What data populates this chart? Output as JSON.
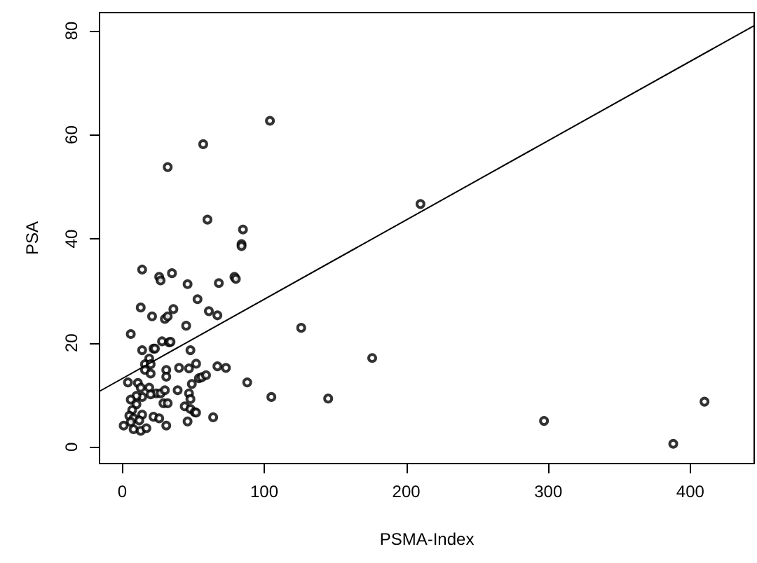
{
  "chart_data": {
    "type": "scatter",
    "xlabel": "PSMA-Index",
    "ylabel": "PSA",
    "xlim": [
      -16,
      445
    ],
    "ylim": [
      -3.2,
      83.5
    ],
    "xticks": [
      0,
      100,
      200,
      300,
      400
    ],
    "yticks": [
      0,
      20,
      40,
      60,
      80
    ],
    "grid": false,
    "marker": "circle",
    "series": [
      {
        "color": "#000000",
        "x": [
          104,
          57,
          32,
          60,
          85,
          84,
          84,
          210,
          14,
          26,
          27,
          35,
          46,
          68,
          79,
          80,
          53,
          13,
          36,
          21,
          30,
          32,
          61,
          67,
          45,
          126,
          6,
          14,
          22,
          23,
          28,
          33,
          34,
          48,
          176,
          19,
          16,
          20,
          16,
          20,
          31,
          40,
          47,
          52,
          67,
          73,
          31,
          54,
          56,
          59,
          4,
          11,
          13,
          19,
          24,
          27,
          30,
          39,
          49,
          88,
          14,
          10,
          6,
          20,
          47,
          48,
          105,
          145,
          410,
          10,
          29,
          32,
          7,
          44,
          48,
          51,
          52,
          5,
          14,
          22,
          26,
          64,
          8,
          12,
          6,
          46,
          297,
          1,
          31,
          8,
          13,
          17,
          388
        ],
        "values": [
          62.7,
          58.2,
          53.8,
          43.7,
          41.8,
          39.0,
          38.6,
          46.7,
          34.1,
          32.7,
          32.0,
          33.4,
          31.3,
          31.5,
          32.7,
          32.3,
          28.4,
          26.8,
          26.5,
          25.1,
          24.6,
          25.1,
          26.1,
          25.3,
          23.3,
          22.9,
          21.7,
          18.6,
          18.9,
          18.9,
          20.3,
          20.1,
          20.2,
          18.6,
          17.1,
          17.0,
          15.9,
          15.9,
          14.8,
          14.1,
          14.8,
          15.2,
          15.1,
          16.0,
          15.5,
          15.2,
          13.5,
          13.2,
          13.4,
          13.8,
          12.4,
          12.3,
          11.4,
          11.4,
          10.3,
          10.3,
          10.9,
          10.9,
          12.1,
          12.4,
          9.6,
          9.8,
          9.1,
          10.1,
          10.3,
          9.2,
          9.6,
          9.3,
          8.7,
          8.2,
          8.4,
          8.4,
          7.1,
          7.8,
          7.3,
          6.7,
          6.6,
          6.0,
          6.2,
          5.8,
          5.5,
          5.7,
          5.5,
          5.1,
          4.8,
          4.9,
          5.0,
          4.1,
          4.1,
          3.4,
          3.1,
          3.6,
          0.6
        ]
      },
      {
        "type": "line",
        "color": "#000000",
        "marker": "none",
        "line_style": "solid",
        "x": [
          -16,
          445
        ],
        "values": [
          10.7,
          81.0
        ]
      }
    ]
  }
}
